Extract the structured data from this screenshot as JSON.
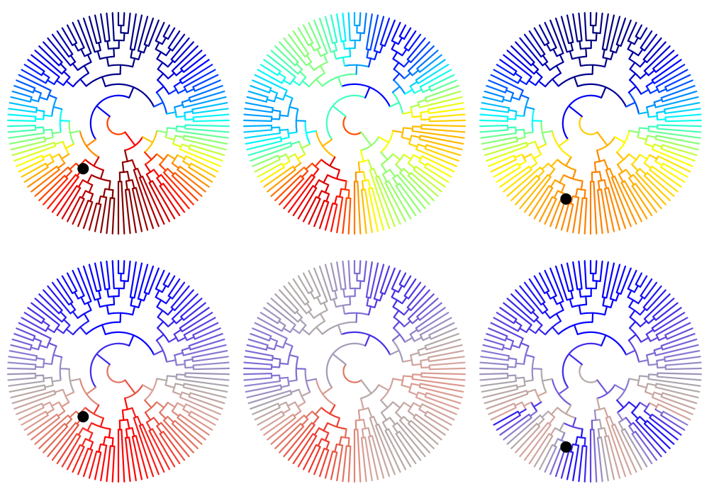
{
  "figure": {
    "rows": 2,
    "cols": 3,
    "panels": [
      {
        "id": "top-left",
        "palette": "jet",
        "shift": 0.0,
        "marker": "node-a",
        "rim": null
      },
      {
        "id": "top-middle",
        "palette": "jet",
        "shift": 0.55,
        "marker": null,
        "rim": null
      },
      {
        "id": "top-right",
        "palette": "jet",
        "shift": 0.0,
        "marker": "node-b",
        "rim": "jet-mid"
      },
      {
        "id": "bottom-left",
        "palette": "bluered",
        "shift": 0.0,
        "marker": "node-a",
        "rim": null
      },
      {
        "id": "bottom-middle",
        "palette": "bluered",
        "shift": 0.55,
        "marker": null,
        "rim": null
      },
      {
        "id": "bottom-right",
        "palette": "bluered",
        "shift": 0.0,
        "marker": "node-b",
        "rim": "lavender"
      }
    ]
  },
  "colors": {
    "jet": [
      "#00007f",
      "#0000ff",
      "#007fff",
      "#00ffff",
      "#7fff7f",
      "#ffff00",
      "#ff7f00",
      "#ff0000",
      "#7f0000"
    ],
    "bluered": [
      "#0000ff",
      "#5a3de0",
      "#8f7fd0",
      "#b0aaaa",
      "#d9a39a",
      "#e36a55",
      "#ff0000"
    ],
    "marker": "#000000",
    "background": "#ffffff"
  }
}
